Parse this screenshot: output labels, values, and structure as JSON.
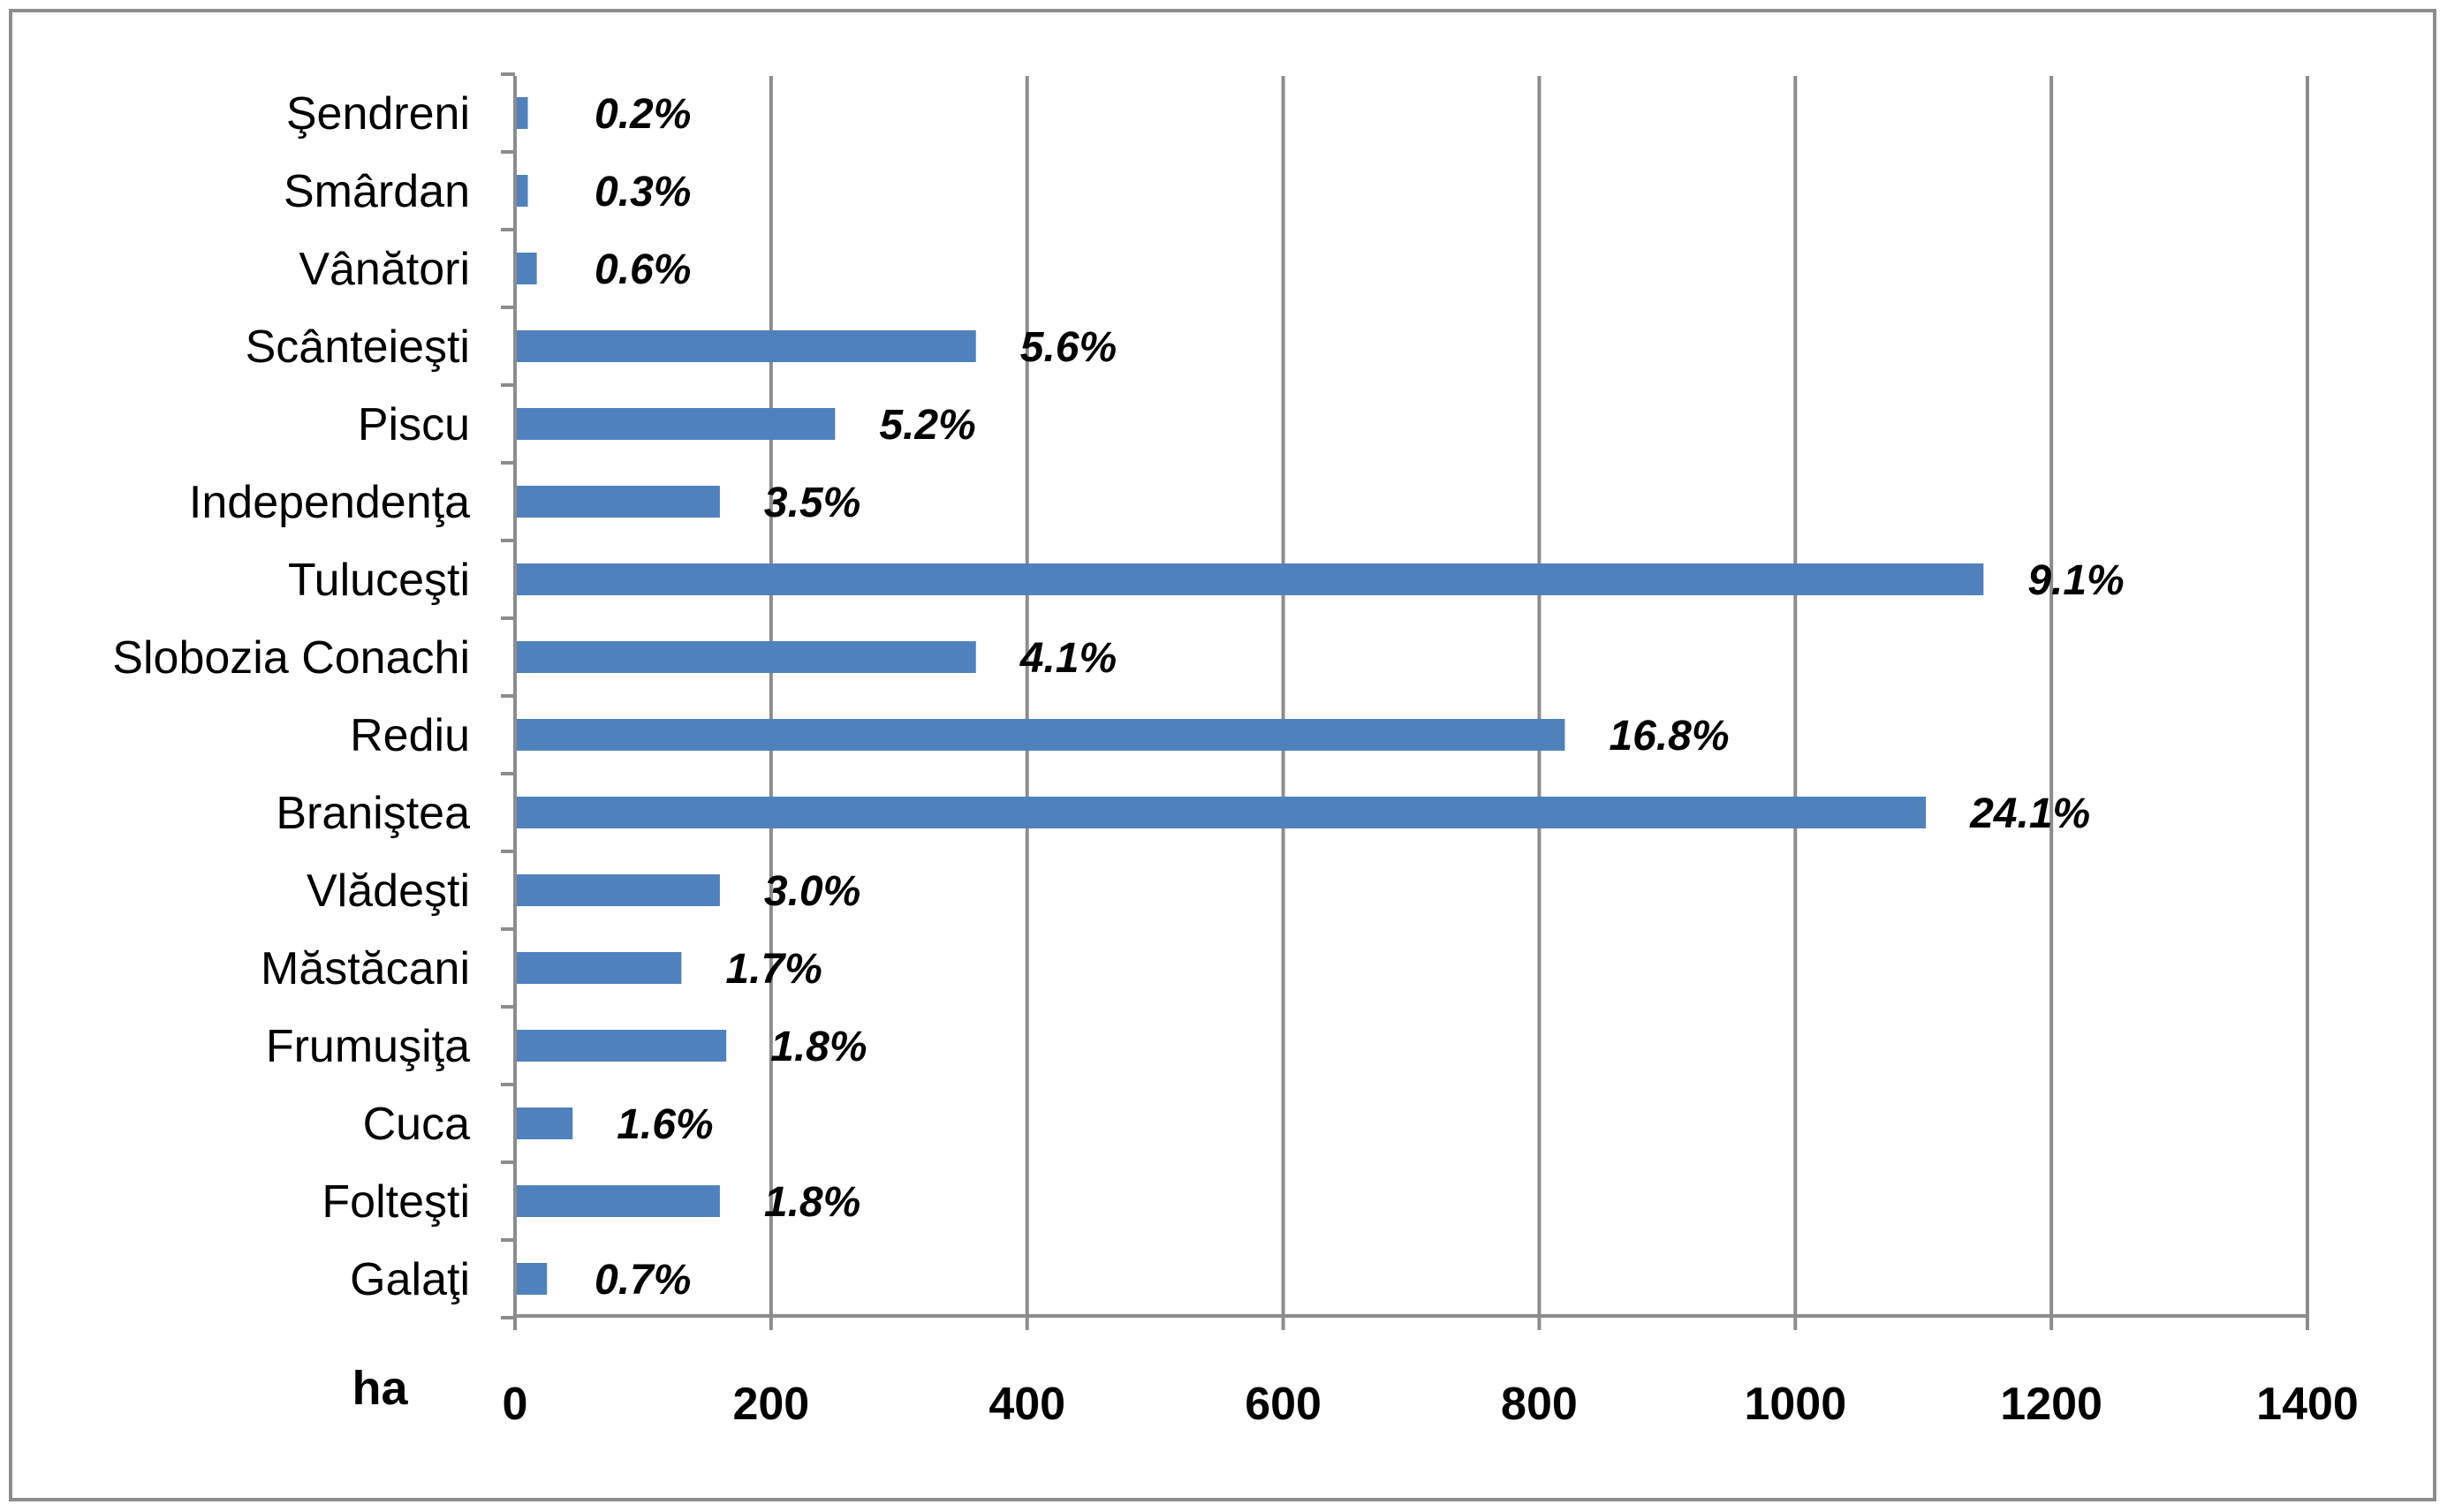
{
  "chart_data": {
    "type": "bar",
    "orientation": "horizontal",
    "categories": [
      "Galaţi",
      "Folteşti",
      "Cuca",
      "Frumuşiţa",
      "Măstăcani",
      "Vlădeşti",
      "Braniştea",
      "Rediu",
      "Slobozia Conachi",
      "Tuluceşti",
      "Independenţa",
      "Piscu",
      "Scânteieşti",
      "Vânători",
      "Smârdan",
      "Şendreni"
    ],
    "values": [
      25,
      160,
      45,
      165,
      130,
      160,
      1102,
      820,
      360,
      1147,
      160,
      250,
      360,
      17,
      10,
      10
    ],
    "data_labels": [
      "0.7%",
      "1.8%",
      "1.6%",
      "1.8%",
      "1.7%",
      "3.0%",
      "24.1%",
      "16.8%",
      "4.1%",
      "9.1%",
      "3.5%",
      "5.2%",
      "5.6%",
      "0.6%",
      "0.3%",
      "0.2%"
    ],
    "x_ticks": [
      "0",
      "200",
      "400",
      "600",
      "800",
      "1000",
      "1200",
      "1400"
    ],
    "xlim": [
      0,
      1400
    ],
    "xlabel": "ha",
    "ylabel": "",
    "title": "",
    "grid": "vertical",
    "legend": "none",
    "bar_color": "#4f81bd",
    "grid_color": "#8c8c8c"
  }
}
